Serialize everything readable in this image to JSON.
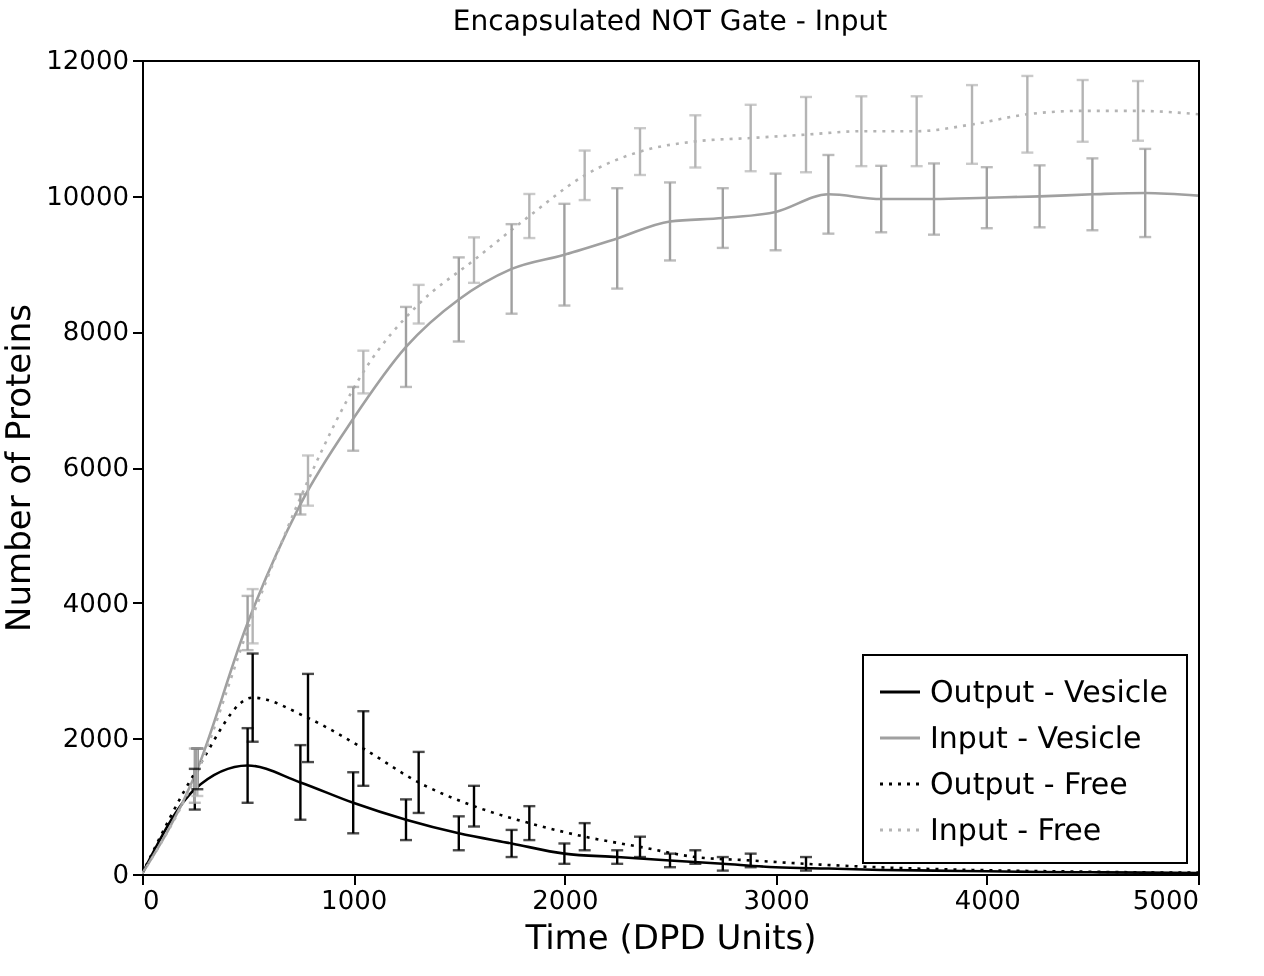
{
  "chart_data": {
    "type": "line",
    "title": "Encapsulated NOT Gate - Input",
    "xlabel": "Time (DPD Units)",
    "ylabel": "Number of Proteins",
    "xlim": [
      0,
      5000
    ],
    "xticks": [
      0,
      1000,
      2000,
      3000,
      4000,
      5000
    ],
    "ylim": [
      0,
      12000
    ],
    "yticks": [
      0,
      2000,
      4000,
      6000,
      8000,
      10000,
      12000
    ],
    "grid": false,
    "legend": "bottom right",
    "series": [
      {
        "name": "Output - Vesicle",
        "color": "#000000",
        "line_style": "solid",
        "x": [
          0,
          250,
          500,
          750,
          1000,
          1250,
          1500,
          1750,
          2000,
          2250,
          2500,
          2750,
          3000,
          3250,
          3500,
          3750,
          4000,
          4250,
          4500,
          4750,
          5000
        ],
        "values": [
          0,
          1250,
          1600,
          1350,
          1050,
          800,
          600,
          450,
          300,
          250,
          200,
          150,
          100,
          80,
          60,
          50,
          40,
          30,
          25,
          20,
          15
        ],
        "errors": [
          null,
          300,
          550,
          550,
          450,
          300,
          250,
          200,
          150,
          100,
          100,
          100,
          null,
          null,
          null,
          null,
          null,
          null,
          null,
          null,
          null
        ]
      },
      {
        "name": "Input - Vesicle",
        "color": "#a0a0a0",
        "line_style": "solid",
        "x": [
          0,
          250,
          500,
          750,
          1000,
          1250,
          1500,
          1750,
          2000,
          2250,
          2500,
          2750,
          3000,
          3250,
          3500,
          3750,
          4000,
          4250,
          4500,
          4750,
          5000
        ],
        "values": [
          0,
          1450,
          3700,
          5450,
          6710,
          7770,
          8470,
          8920,
          9130,
          9370,
          9620,
          9670,
          9760,
          10020,
          9950,
          9950,
          9970,
          9990,
          10020,
          10040,
          10000
        ],
        "errors": [
          null,
          400,
          400,
          150,
          470,
          590,
          620,
          660,
          750,
          740,
          575,
          440,
          565,
          580,
          490,
          525,
          450,
          457,
          530,
          650,
          null
        ]
      },
      {
        "name": "Output - Free",
        "color": "#000000",
        "line_style": "dotted",
        "x": [
          0,
          262,
          524,
          786,
          1048,
          1310,
          1572,
          1834,
          2096,
          2358,
          2620,
          2882,
          3144,
          3406,
          3668,
          3930,
          4192,
          4454,
          4716,
          5000
        ],
        "values": [
          0,
          1550,
          2600,
          2300,
          1850,
          1350,
          1000,
          750,
          550,
          400,
          250,
          200,
          150,
          110,
          80,
          60,
          45,
          35,
          25,
          20
        ],
        "errors": [
          null,
          300,
          650,
          650,
          550,
          450,
          300,
          250,
          200,
          150,
          100,
          100,
          100,
          null,
          null,
          null,
          null,
          null,
          null,
          null
        ]
      },
      {
        "name": "Input - Free",
        "color": "#b4b4b4",
        "line_style": "dotted",
        "x": [
          0,
          262,
          524,
          786,
          1048,
          1310,
          1572,
          1834,
          2096,
          2358,
          2620,
          2882,
          3144,
          3406,
          3668,
          3930,
          4192,
          4454,
          4716,
          5000
        ],
        "values": [
          0,
          1500,
          3800,
          5800,
          7400,
          8400,
          9050,
          9700,
          10300,
          10650,
          10800,
          10850,
          10900,
          10950,
          10950,
          11050,
          11200,
          11250,
          11250,
          11200
        ],
        "errors": [
          null,
          350,
          400,
          370,
          315,
          285,
          335,
          325,
          365,
          345,
          385,
          490,
          555,
          515,
          515,
          580,
          565,
          455,
          440,
          null
        ]
      }
    ]
  }
}
